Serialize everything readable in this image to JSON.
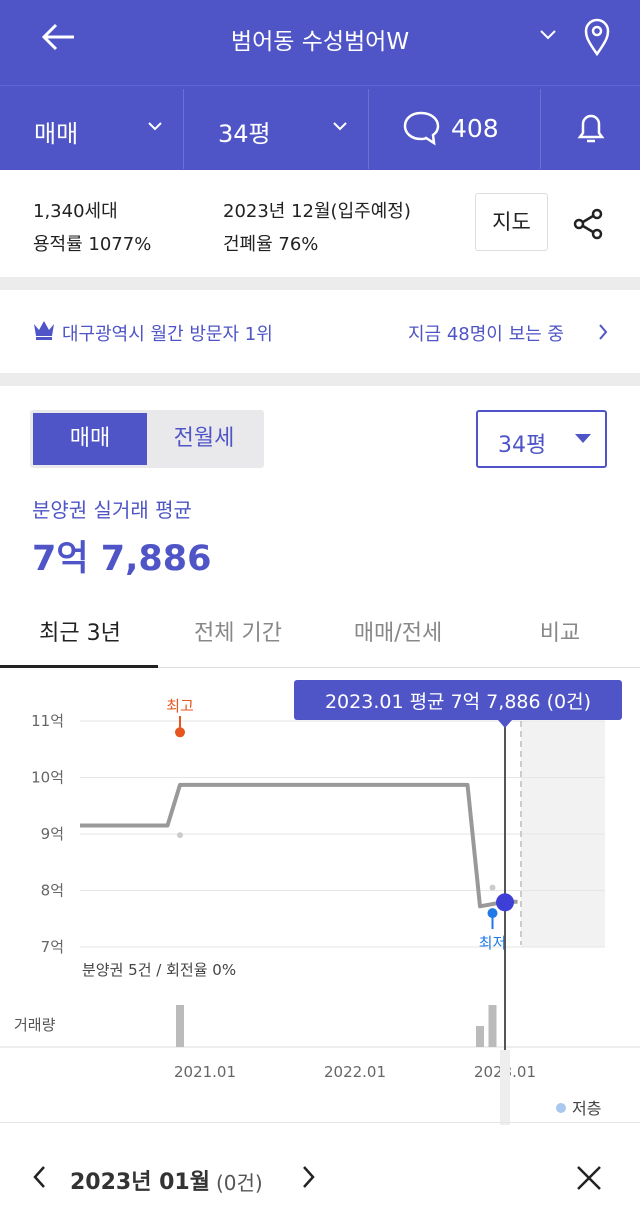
{
  "header": {
    "title": "범어동 수성범어W",
    "back_icon": "arrow-left-icon",
    "location_icon": "map-pin-icon"
  },
  "subbar": {
    "trade_type": "매매",
    "size": "34평",
    "comment_count": "408",
    "comment_icon": "chat-bubble-icon",
    "bell_icon": "bell-icon"
  },
  "info": {
    "households": "1,340세대",
    "move_in": "2023년 12월(입주예정)",
    "far": "용적률 1077%",
    "bcr": "건폐율 76%",
    "map_button": "지도",
    "share_icon": "share-icon"
  },
  "banner": {
    "rank": "대구광역시 월간 방문자 1위",
    "viewers": "지금 48명이 보는 중",
    "crown_icon": "crown-icon"
  },
  "toggle": {
    "options": [
      "매매",
      "전월세"
    ],
    "selected": "매매",
    "size_select": "34평"
  },
  "price": {
    "label": "분양권 실거래 평균",
    "value": "7억 7,886"
  },
  "period_tabs": [
    "최근 3년",
    "전체 기간",
    "매매/전세",
    "비교"
  ],
  "period_selected": "최근 3년",
  "accent": "#4f55c6",
  "chart_data": {
    "type": "line",
    "tooltip": "2023.01 평균 7억 7,886 (0건)",
    "y_ticks": [
      "11억",
      "10억",
      "9억",
      "8억",
      "7억"
    ],
    "ylim": [
      7,
      11
    ],
    "x_ticks": [
      "2021.01",
      "2022.01",
      "2023.01"
    ],
    "xlim": [
      "2020.03",
      "2023.09"
    ],
    "grid": true,
    "series": [
      {
        "x": [
          "2020.03",
          "2020.10",
          "2020.11",
          "2022.10",
          "2022.11",
          "2023.01",
          "2023.02"
        ],
        "values": [
          9.15,
          9.15,
          9.87,
          9.87,
          7.72,
          7.8,
          7.8
        ]
      }
    ],
    "max_marker": {
      "label": "최고",
      "x": "2020.11",
      "value": 10.8,
      "color": "#e8561f"
    },
    "min_marker": {
      "label": "최저",
      "x": "2022.12",
      "value": 7.6,
      "color": "#1f7ae8"
    },
    "selected": {
      "x": "2023.01",
      "value": 7.79
    },
    "deals": [
      {
        "x": "2020.11",
        "value": 8.98
      },
      {
        "x": "2022.12",
        "value": 8.05
      }
    ],
    "volume_label": "거래량",
    "volume": [
      {
        "x": "2020.11",
        "count": 2
      },
      {
        "x": "2022.11",
        "count": 1
      },
      {
        "x": "2022.12",
        "count": 2
      }
    ],
    "summary": "분양권 5건 / 회전율 0%",
    "legend": "저층",
    "legend_color": "#a9c8ef"
  },
  "footer": {
    "month": "2023년 01월",
    "count": "(0건)",
    "prev_icon": "chevron-left-icon",
    "next_icon": "chevron-right-icon",
    "close_icon": "close-icon"
  }
}
